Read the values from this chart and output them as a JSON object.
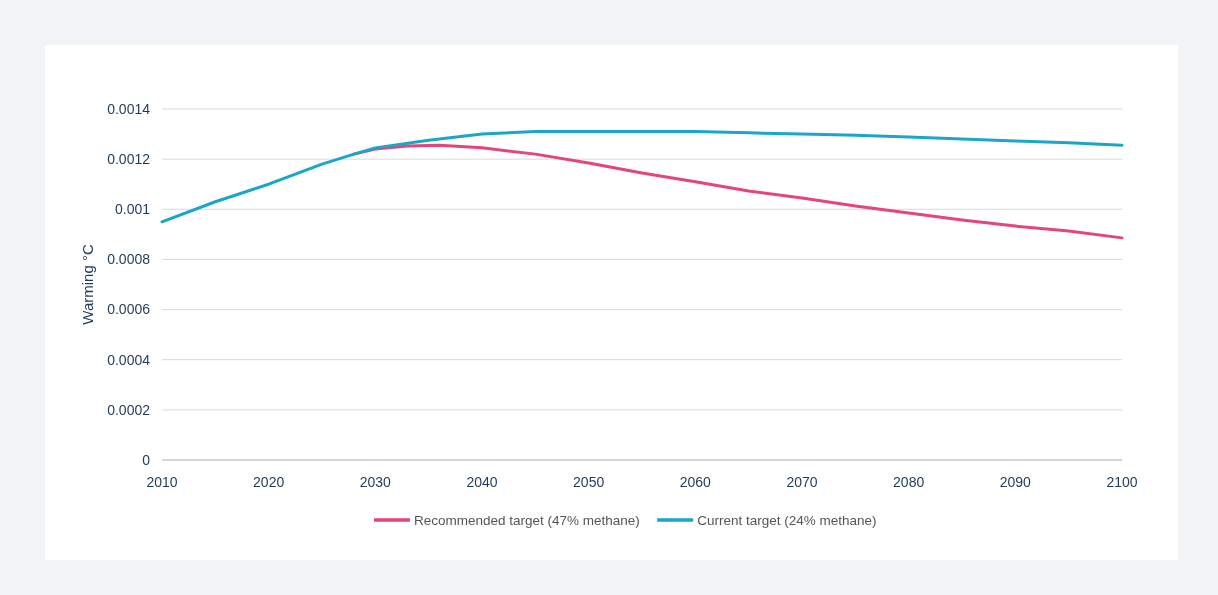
{
  "chart_data": {
    "type": "line",
    "ylabel": "Warming °C",
    "xlim": [
      2010,
      2100
    ],
    "xticks": [
      2010,
      2020,
      2030,
      2040,
      2050,
      2060,
      2070,
      2080,
      2090,
      2100
    ],
    "ylim": [
      0,
      0.0014
    ],
    "yticks": [
      0,
      0.0002,
      0.0004,
      0.0006,
      0.0008,
      0.001,
      0.0012,
      0.0014
    ],
    "grid": "y",
    "legend": "bottom",
    "marker": "none",
    "line_style": "solid",
    "series": [
      {
        "name": "Recommended target (47% methane)",
        "color": "#e5457b",
        "x": [
          2028,
          2030,
          2033,
          2036,
          2040,
          2045,
          2050,
          2055,
          2060,
          2065,
          2070,
          2075,
          2080,
          2085,
          2090,
          2095,
          2100
        ],
        "values": [
          0.00122,
          0.00124,
          0.001252,
          0.001255,
          0.001245,
          0.00122,
          0.001185,
          0.001145,
          0.00111,
          0.001073,
          0.001045,
          0.001013,
          0.000985,
          0.000957,
          0.000933,
          0.000913,
          0.000886
        ]
      },
      {
        "name": "Current target (24% methane)",
        "color": "#1aa6c9",
        "x": [
          2010,
          2015,
          2020,
          2025,
          2028,
          2030,
          2035,
          2040,
          2045,
          2050,
          2055,
          2060,
          2065,
          2070,
          2075,
          2080,
          2085,
          2090,
          2095,
          2100
        ],
        "values": [
          0.00095,
          0.00103,
          0.0011,
          0.00118,
          0.00122,
          0.001245,
          0.001275,
          0.0013,
          0.00131,
          0.00131,
          0.00131,
          0.00131,
          0.001305,
          0.0013,
          0.001295,
          0.001288,
          0.00128,
          0.001272,
          0.001265,
          0.001255
        ]
      }
    ]
  }
}
